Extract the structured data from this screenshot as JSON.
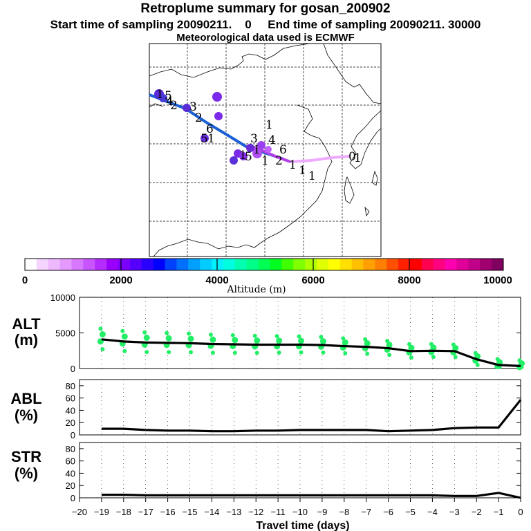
{
  "header": {
    "title": "Retroplume summary for gosan_200902",
    "sampling": "Start time of sampling 20090211.    0     End time of sampling 20090211. 30000",
    "met": "Meteorological data used is ECMWF"
  },
  "colorbar": {
    "label": "Altitude (m)",
    "ticks": [
      "0",
      "2000",
      "4000",
      "6000",
      "8000",
      "10000"
    ],
    "colors": [
      "#ffffff",
      "#f5d5ff",
      "#eeb8ff",
      "#e49aff",
      "#d878ff",
      "#c855ff",
      "#b52cff",
      "#9a00ff",
      "#7a00ff",
      "#5500ff",
      "#2a00ff",
      "#0000ff",
      "#0040ff",
      "#0070ff",
      "#00a0ff",
      "#00ccff",
      "#00f0ff",
      "#00ffe0",
      "#00ffb0",
      "#00ff88",
      "#00ff55",
      "#00ff20",
      "#40ff00",
      "#80ff00",
      "#b0ff00",
      "#e0ff00",
      "#ffff00",
      "#ffe000",
      "#ffc000",
      "#ffa000",
      "#ff8000",
      "#ff5000",
      "#ff2000",
      "#ff0000",
      "#ff0050",
      "#ff0080",
      "#ff00b0",
      "#e0009a",
      "#c00088",
      "#a00070",
      "#800060"
    ]
  },
  "map": {
    "labels": [
      "1",
      "5",
      "2",
      "4",
      "3",
      "2",
      "6",
      "5",
      "1",
      "1",
      "1",
      "3",
      "4",
      "1",
      "6",
      "5",
      "1",
      "2",
      "1",
      "1",
      "1",
      "1",
      "0"
    ]
  },
  "panels": {
    "alt_label": "ALT",
    "alt_unit": "(m)",
    "abl_label": "ABL",
    "abl_unit": "(%)",
    "str_label": "STR",
    "str_unit": "(%)",
    "xlabel": "Travel time (days)"
  },
  "chart_data": [
    {
      "type": "line",
      "title": "ALT",
      "ylabel": "(m)",
      "ylim": [
        0,
        10000
      ],
      "yticks": [
        0,
        5000,
        10000
      ],
      "x": [
        -19,
        -18,
        -17,
        -16,
        -15,
        -14,
        -13,
        -12,
        -11,
        -10,
        -9,
        -8,
        -7,
        -6,
        -5,
        -4,
        -3,
        -2,
        -1,
        0
      ],
      "values": [
        4100,
        3800,
        3650,
        3600,
        3550,
        3450,
        3400,
        3350,
        3350,
        3350,
        3300,
        3150,
        3050,
        2850,
        2450,
        2500,
        2450,
        1300,
        500,
        350
      ],
      "scatter_color": "#22ee66"
    },
    {
      "type": "line",
      "title": "ABL",
      "ylabel": "(%)",
      "ylim": [
        0,
        90
      ],
      "yticks": [
        0,
        20,
        40,
        60,
        80
      ],
      "x": [
        -19,
        -18,
        -17,
        -16,
        -15,
        -14,
        -13,
        -12,
        -11,
        -10,
        -9,
        -8,
        -7,
        -6,
        -5,
        -4,
        -3,
        -2,
        -1,
        0
      ],
      "values": [
        10,
        10,
        8,
        7,
        7,
        6,
        6,
        7,
        7,
        8,
        8,
        8,
        8,
        6,
        7,
        8,
        11,
        12,
        12,
        57
      ]
    },
    {
      "type": "line",
      "title": "STR",
      "ylabel": "(%)",
      "ylim": [
        0,
        90
      ],
      "yticks": [
        0,
        20,
        40,
        60,
        80
      ],
      "x": [
        -19,
        -18,
        -17,
        -16,
        -15,
        -14,
        -13,
        -12,
        -11,
        -10,
        -9,
        -8,
        -7,
        -6,
        -5,
        -4,
        -3,
        -2,
        -1,
        0
      ],
      "values": [
        5,
        5,
        4,
        4,
        4,
        4,
        4,
        4,
        4,
        4,
        4,
        4,
        4,
        4,
        4,
        4,
        3,
        3,
        8,
        0
      ]
    }
  ],
  "xaxis": {
    "ticks": [
      "−20",
      "−19",
      "−18",
      "−17",
      "−16",
      "−15",
      "−14",
      "−13",
      "−12",
      "−11",
      "−10",
      "−9",
      "−8",
      "−7",
      "−6",
      "−5",
      "−4",
      "−3",
      "−2",
      "−1",
      "0"
    ]
  }
}
